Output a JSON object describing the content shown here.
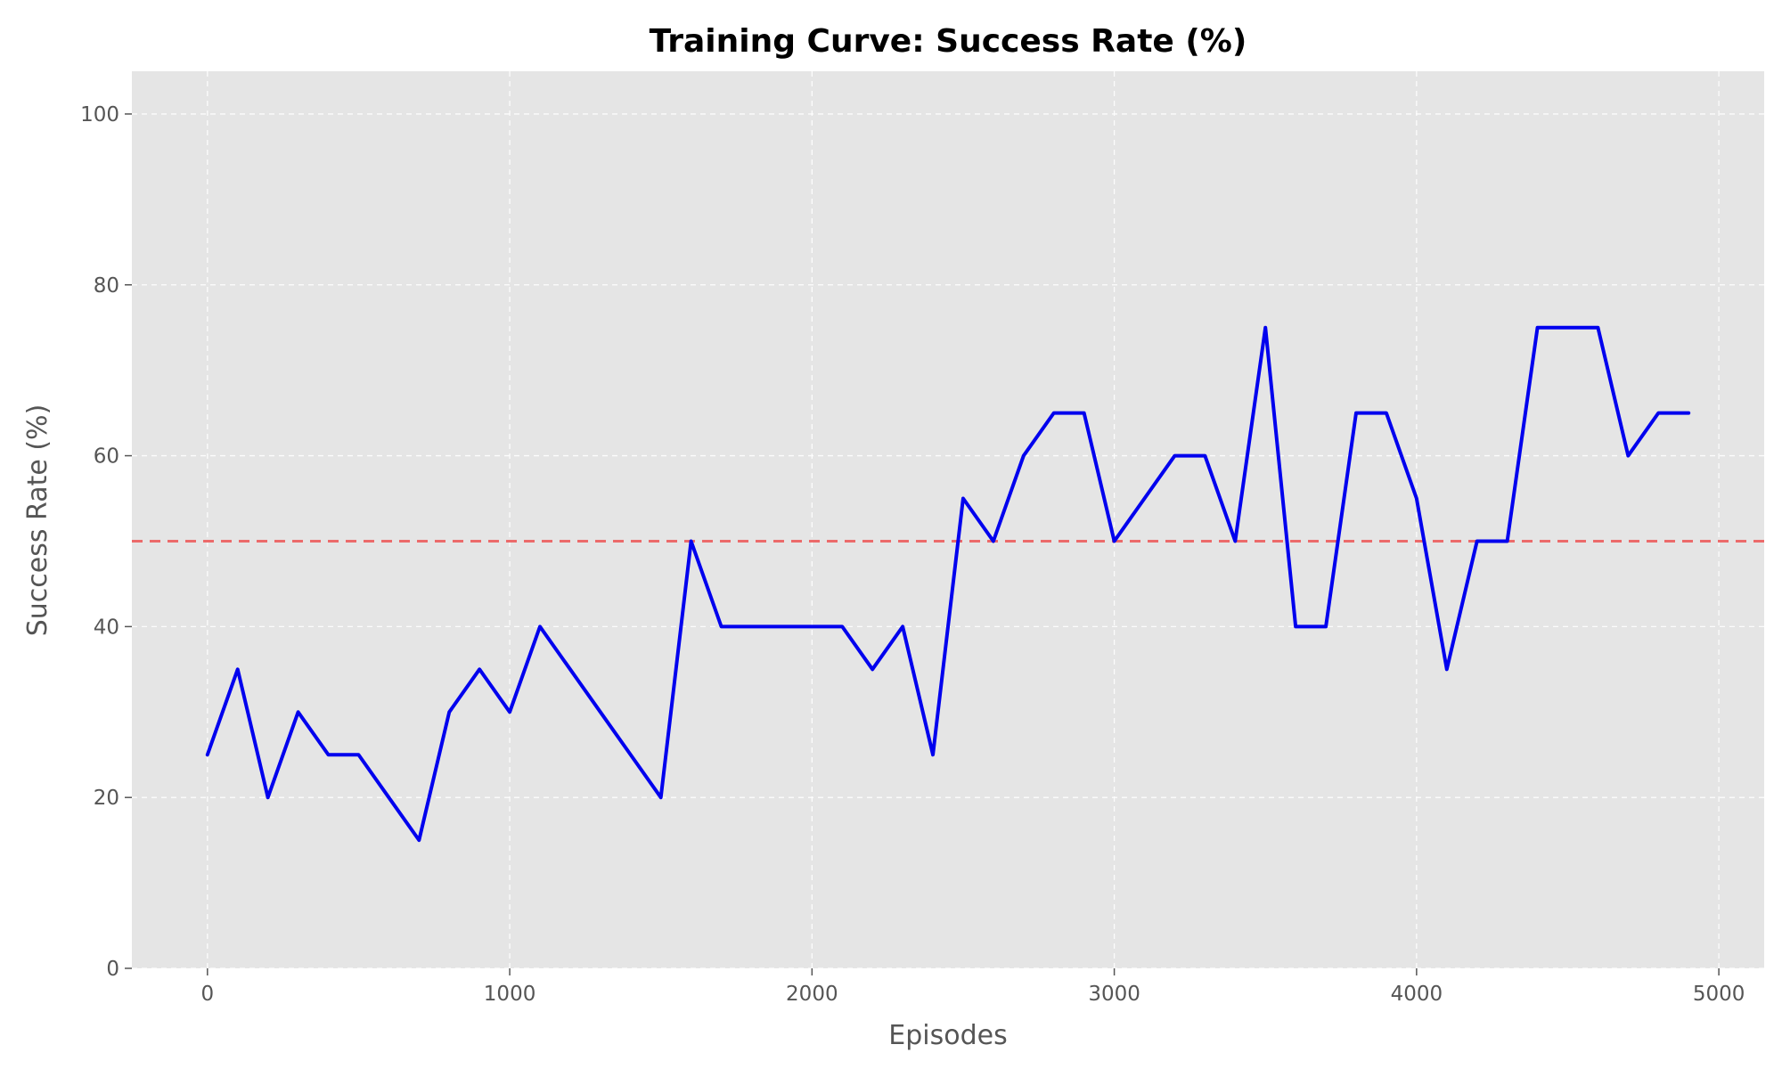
{
  "chart_data": {
    "type": "line",
    "title": "Training Curve: Success Rate (%)",
    "xlabel": "Episodes",
    "ylabel": "Success Rate (%)",
    "xlim": [
      -250,
      5150
    ],
    "ylim": [
      0,
      105
    ],
    "xticks": [
      0,
      1000,
      2000,
      3000,
      4000,
      5000
    ],
    "yticks": [
      0,
      20,
      40,
      60,
      80,
      100
    ],
    "grid": true,
    "colors": {
      "background": "#e5e5e5",
      "line": "#0000ee",
      "reference": "#ee5555",
      "grid": "#ffffff"
    },
    "series": [
      {
        "x": [
          0,
          100,
          200,
          300,
          400,
          500,
          600,
          700,
          800,
          900,
          1000,
          1100,
          1200,
          1300,
          1400,
          1500,
          1600,
          1700,
          1800,
          1900,
          2000,
          2100,
          2200,
          2300,
          2400,
          2500,
          2600,
          2700,
          2800,
          2900,
          3000,
          3100,
          3200,
          3300,
          3400,
          3500,
          3600,
          3700,
          3800,
          3900,
          4000,
          4100,
          4200,
          4300,
          4400,
          4500,
          4600,
          4700,
          4800,
          4900
        ],
        "values": [
          25,
          35,
          20,
          30,
          25,
          25,
          20,
          15,
          30,
          35,
          30,
          40,
          35,
          30,
          25,
          20,
          50,
          40,
          40,
          40,
          40,
          40,
          35,
          40,
          25,
          55,
          50,
          60,
          65,
          65,
          50,
          55,
          60,
          60,
          50,
          75,
          40,
          40,
          65,
          65,
          55,
          35,
          50,
          50,
          75,
          75,
          75,
          60,
          65,
          65
        ]
      }
    ],
    "reference_line": {
      "y": 50,
      "style": "dashed"
    }
  }
}
